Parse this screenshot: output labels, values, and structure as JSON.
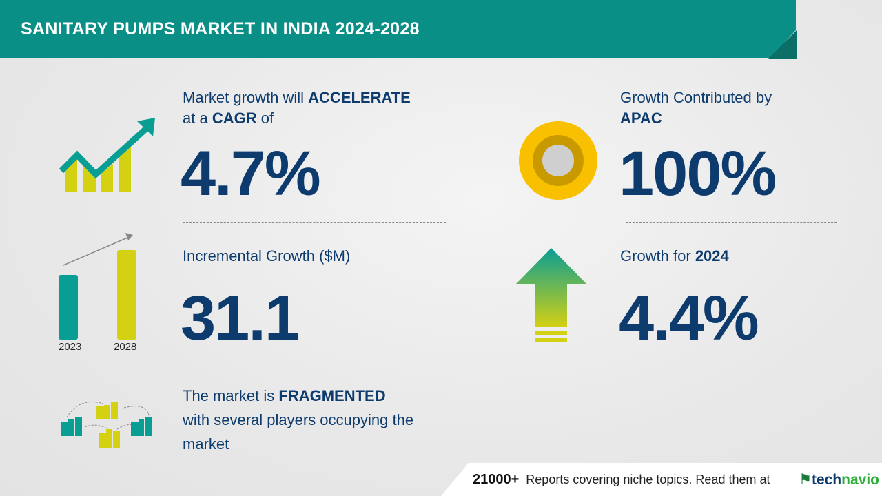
{
  "header": {
    "title": "SANITARY PUMPS MARKET IN INDIA 2024-2028"
  },
  "cagr": {
    "line1_pre": "Market growth will ",
    "line1_bold": "ACCELERATE",
    "line2_pre": "at a ",
    "line2_bold": "CAGR",
    "line2_post": " of",
    "value": "4.7%"
  },
  "incremental": {
    "label": "Incremental Growth ($M)",
    "value": "31.1",
    "years": [
      "2023",
      "2028"
    ]
  },
  "market": {
    "pre": "The market is ",
    "bold": "FRAGMENTED",
    "line2": "with several players occupying the",
    "line3": "market"
  },
  "region": {
    "label": "Growth Contributed by",
    "bold": "APAC",
    "value": "100%"
  },
  "yoy": {
    "label": "Growth for ",
    "year": "2024",
    "value": "4.4%"
  },
  "footer": {
    "count": "21000+",
    "text": "Reports covering niche topics. Read them at",
    "logo_part1": "tech",
    "logo_part2": "navio"
  },
  "colors": {
    "teal": "#0a8f86",
    "navy": "#0d3b6e",
    "yellow": "#d4d012"
  }
}
